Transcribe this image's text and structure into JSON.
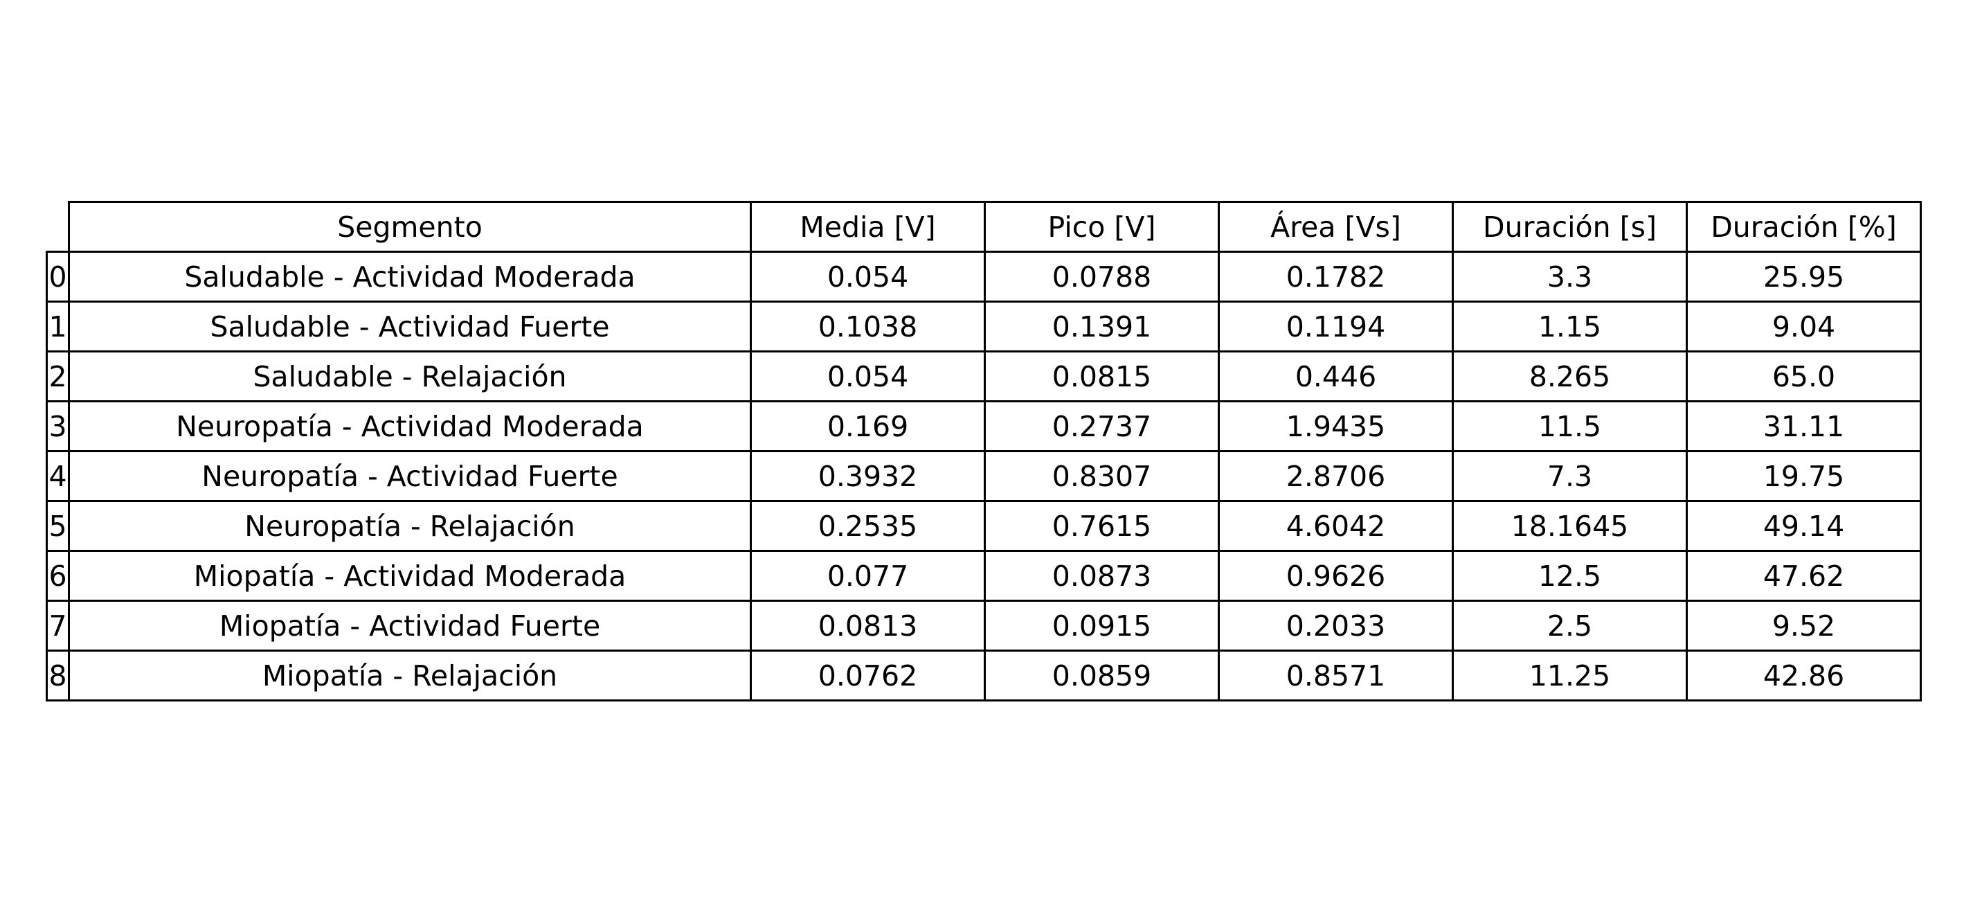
{
  "chart_data": {
    "type": "table",
    "columns": [
      "Segmento",
      "Media [V]",
      "Pico [V]",
      "Área [Vs]",
      "Duración [s]",
      "Duración [%]"
    ],
    "rows": [
      {
        "index": "0",
        "cells": [
          "Saludable - Actividad Moderada",
          "0.054",
          "0.0788",
          "0.1782",
          "3.3",
          "25.95"
        ]
      },
      {
        "index": "1",
        "cells": [
          "Saludable - Actividad Fuerte",
          "0.1038",
          "0.1391",
          "0.1194",
          "1.15",
          "9.04"
        ]
      },
      {
        "index": "2",
        "cells": [
          "Saludable - Relajación",
          "0.054",
          "0.0815",
          "0.446",
          "8.265",
          "65.0"
        ]
      },
      {
        "index": "3",
        "cells": [
          "Neuropatía - Actividad Moderada",
          "0.169",
          "0.2737",
          "1.9435",
          "11.5",
          "31.11"
        ]
      },
      {
        "index": "4",
        "cells": [
          "Neuropatía - Actividad Fuerte",
          "0.3932",
          "0.8307",
          "2.8706",
          "7.3",
          "19.75"
        ]
      },
      {
        "index": "5",
        "cells": [
          "Neuropatía - Relajación",
          "0.2535",
          "0.7615",
          "4.6042",
          "18.1645",
          "49.14"
        ]
      },
      {
        "index": "6",
        "cells": [
          "Miopatía - Actividad Moderada",
          "0.077",
          "0.0873",
          "0.9626",
          "12.5",
          "47.62"
        ]
      },
      {
        "index": "7",
        "cells": [
          "Miopatía - Actividad Fuerte",
          "0.0813",
          "0.0915",
          "0.2033",
          "2.5",
          "9.52"
        ]
      },
      {
        "index": "8",
        "cells": [
          "Miopatía - Relajación",
          "0.0762",
          "0.0859",
          "0.8571",
          "11.25",
          "42.86"
        ]
      }
    ]
  }
}
